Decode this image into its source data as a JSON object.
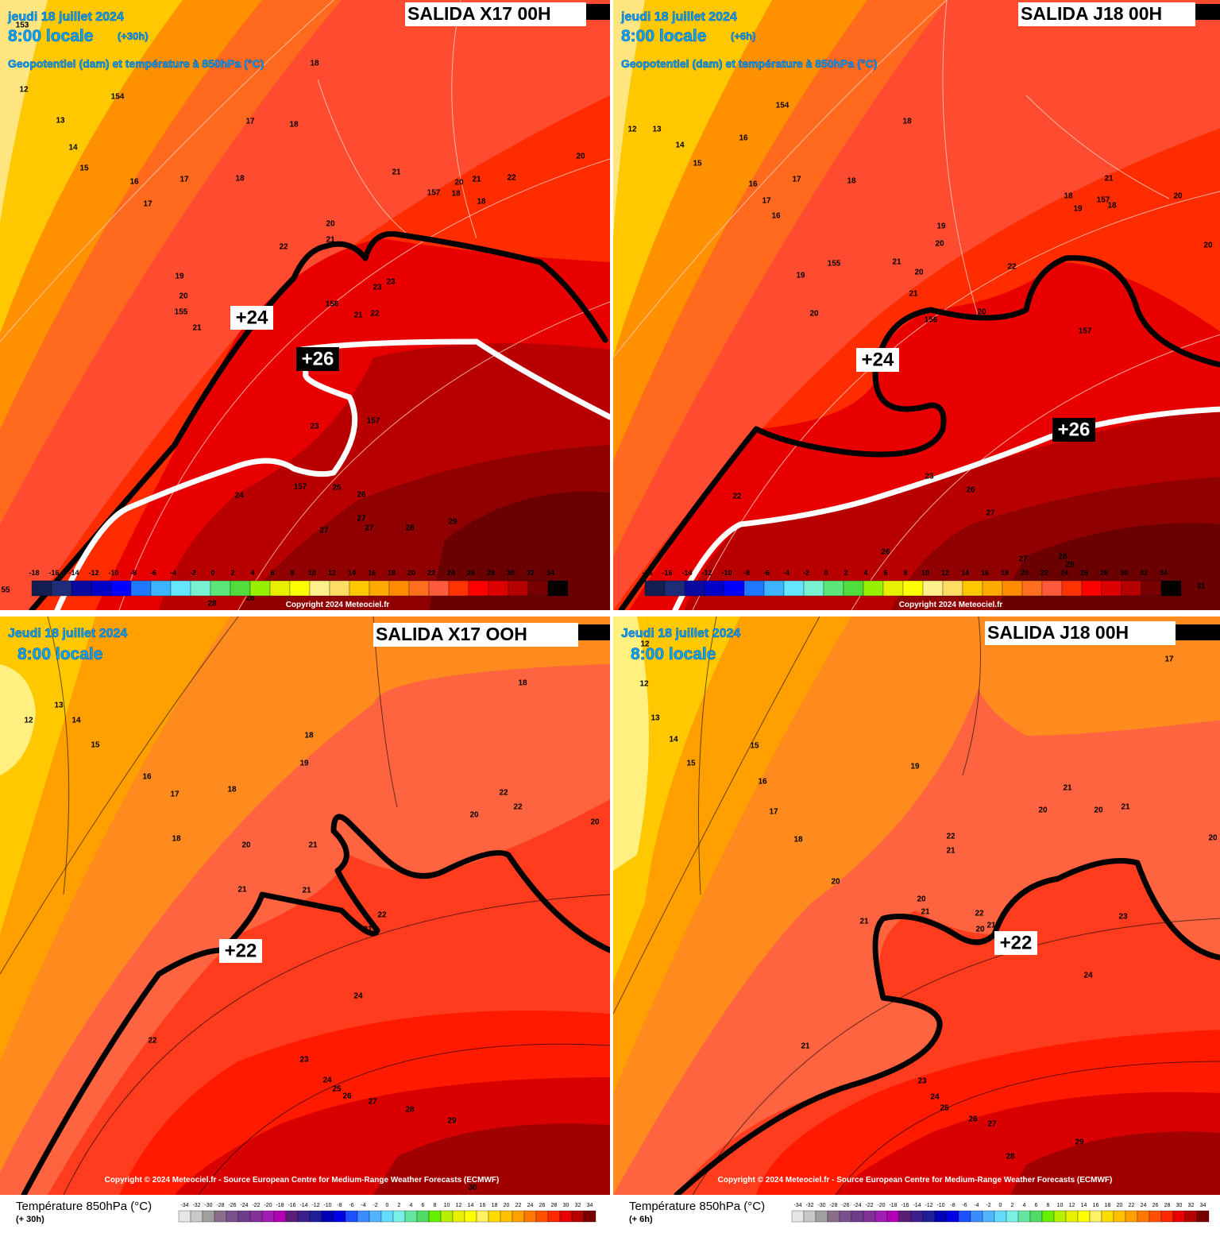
{
  "panels": [
    {
      "date": "jeudi 18 juillet 2024",
      "time": "8:00 locale",
      "lead": "(+30h)",
      "subtitle": "Geopotentiel (dam) et température à 850hPa (°C)",
      "run": "SALIDA X17 00H",
      "isotherm_labels": [
        "+24",
        "+26"
      ],
      "copyright": "Copyright 2024 Meteociel.fr",
      "contour_labels": [
        153,
        18,
        12,
        154,
        13,
        17,
        18,
        14,
        15,
        21,
        22,
        20,
        16,
        17,
        18,
        157,
        20,
        18,
        21,
        18,
        17,
        20,
        21,
        22,
        19,
        23,
        23,
        20,
        156,
        155,
        21,
        22,
        21,
        157,
        23,
        157,
        25,
        24,
        26,
        27,
        27,
        27,
        28,
        29,
        28,
        28,
        55
      ]
    },
    {
      "date": "jeudi 18 juillet 2024",
      "time": "8:00 locale",
      "lead": "(+6h)",
      "subtitle": "Geopotentiel (dam) et température à 850hPa (°C)",
      "run": "SALIDA J18 00H",
      "isotherm_labels": [
        "+24",
        "+26"
      ],
      "copyright": "Copyright 2024 Meteociel.fr",
      "contour_labels": [
        154,
        18,
        12,
        13,
        16,
        14,
        15,
        21,
        17,
        18,
        16,
        20,
        18,
        157,
        17,
        18,
        19,
        16,
        19,
        20,
        20,
        21,
        155,
        22,
        20,
        19,
        21,
        20,
        20,
        156,
        157,
        23,
        26,
        22,
        27,
        26,
        27,
        28,
        29,
        31
      ]
    },
    {
      "date": "Jeudi 18 juillet 2024",
      "time": "8:00 locale",
      "run": "SALIDA X17 OOH",
      "isotherm_labels": [
        "+22"
      ],
      "copyright": "Copyright © 2024 Meteociel.fr - Source European Centre for Medium-Range Weather Forecasts (ECMWF)",
      "legend_title": "Température 850hPa (°C)",
      "legend_lead": "(+ 30h)",
      "contour_labels": [
        18,
        12,
        13,
        14,
        18,
        15,
        19,
        16,
        18,
        17,
        22,
        22,
        20,
        20,
        18,
        20,
        21,
        21,
        21,
        22,
        21,
        24,
        22,
        23,
        24,
        25,
        26,
        27,
        28,
        29,
        30
      ]
    },
    {
      "date": "Jeudi 18 juillet 2024",
      "time": "8:00 locale",
      "run": "SALIDA J18 00H",
      "isotherm_labels": [
        "+22"
      ],
      "copyright": "Copyright © 2024 Meteociel.fr - Source European Centre for Medium-Range Weather Forecasts (ECMWF)",
      "legend_title": "Température 850hPa (°C)",
      "legend_lead": "(+ 6h)",
      "contour_labels": [
        12,
        17,
        12,
        13,
        14,
        15,
        15,
        19,
        16,
        21,
        17,
        20,
        20,
        21,
        22,
        20,
        18,
        21,
        20,
        20,
        21,
        22,
        23,
        21,
        21,
        20,
        24,
        21,
        23,
        24,
        25,
        26,
        27,
        29,
        28
      ]
    }
  ],
  "scales": {
    "panel": {
      "ticks": [
        -18,
        -16,
        -14,
        -12,
        -10,
        -8,
        -6,
        -4,
        -2,
        0,
        2,
        4,
        6,
        8,
        10,
        12,
        14,
        16,
        18,
        20,
        22,
        24,
        26,
        28,
        30,
        32,
        34
      ],
      "colors": [
        "#141e50",
        "#1e2d78",
        "#0a0aa0",
        "#0000c8",
        "#0000ff",
        "#1e78ff",
        "#3cb4ff",
        "#64e6ff",
        "#78f0d2",
        "#5ae678",
        "#50dc3c",
        "#96f000",
        "#e6f000",
        "#ffff00",
        "#fff08c",
        "#ffdc64",
        "#ffc800",
        "#ffaa00",
        "#ff8c00",
        "#ff6e1e",
        "#ff5a3c",
        "#ff3200",
        "#ff0000",
        "#dc0000",
        "#b40000",
        "#780000",
        "#000000"
      ]
    },
    "legend": {
      "ticks": [
        -34,
        -32,
        -30,
        -28,
        -26,
        -24,
        -22,
        -20,
        -18,
        -16,
        -14,
        -12,
        -10,
        -8,
        -6,
        -4,
        -2,
        0,
        2,
        4,
        6,
        8,
        10,
        12,
        14,
        16,
        18,
        20,
        22,
        24,
        26,
        28,
        30,
        32,
        34
      ],
      "colors": [
        "#e6e6e6",
        "#c8c8c8",
        "#a0a0a0",
        "#8c6e8c",
        "#78508c",
        "#6e3c8c",
        "#823296",
        "#a01eb4",
        "#b400b4",
        "#5a1e78",
        "#3c1e8c",
        "#1e1e96",
        "#0000b4",
        "#0000e6",
        "#1e50ff",
        "#3c8cff",
        "#50b4ff",
        "#64dcff",
        "#78f0e6",
        "#64e6a0",
        "#50dc64",
        "#64f000",
        "#b4f000",
        "#e6f000",
        "#ffff00",
        "#fff064",
        "#ffdc00",
        "#ffc000",
        "#ffa000",
        "#ff7800",
        "#ff5000",
        "#ff2800",
        "#e60000",
        "#b40000",
        "#780000"
      ]
    }
  }
}
